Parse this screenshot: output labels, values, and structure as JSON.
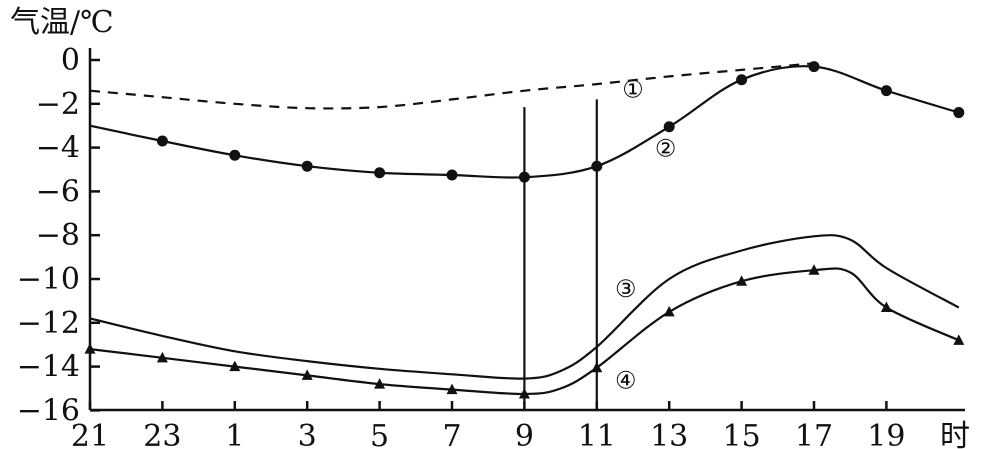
{
  "chart_data": {
    "type": "line",
    "ylabel": "气温/℃",
    "xlabel": "时",
    "categories": [
      "21",
      "23",
      "1",
      "3",
      "5",
      "7",
      "9",
      "11",
      "13",
      "15",
      "17",
      "19"
    ],
    "ylim": [
      -16,
      0
    ],
    "yticks": [
      0,
      -2,
      -4,
      -6,
      -8,
      -10,
      -12,
      -14,
      -16
    ],
    "grid": false,
    "reference_lines": [
      "9",
      "11"
    ],
    "series": [
      {
        "name": "①",
        "style": "dashed",
        "marker": "none",
        "points": [
          [
            0,
            -1.4
          ],
          [
            2,
            -1.7
          ],
          [
            4,
            -2.0
          ],
          [
            6,
            -2.2
          ],
          [
            8,
            -2.15
          ],
          [
            10,
            -1.8
          ],
          [
            12,
            -1.4
          ],
          [
            14,
            -1.1
          ],
          [
            16,
            -0.75
          ],
          [
            18,
            -0.45
          ],
          [
            20,
            -0.15
          ]
        ]
      },
      {
        "name": "②",
        "style": "solid",
        "marker": "circle",
        "points": [
          [
            0,
            -3.0
          ],
          [
            2,
            -3.7
          ],
          [
            4,
            -4.35
          ],
          [
            6,
            -4.85
          ],
          [
            8,
            -5.15
          ],
          [
            10,
            -5.25
          ],
          [
            12,
            -5.35
          ],
          [
            14,
            -4.85
          ],
          [
            16,
            -3.05
          ],
          [
            18,
            -0.9
          ],
          [
            20,
            -0.3
          ],
          [
            22,
            -1.4
          ],
          [
            24,
            -2.4
          ]
        ],
        "marker_points": [
          [
            2,
            -3.7
          ],
          [
            4,
            -4.35
          ],
          [
            6,
            -4.85
          ],
          [
            8,
            -5.15
          ],
          [
            10,
            -5.25
          ],
          [
            12,
            -5.35
          ],
          [
            14,
            -4.85
          ],
          [
            16,
            -3.05
          ],
          [
            18,
            -0.9
          ],
          [
            20,
            -0.3
          ],
          [
            22,
            -1.4
          ],
          [
            24,
            -2.4
          ]
        ]
      },
      {
        "name": "③",
        "style": "solid",
        "marker": "none",
        "points": [
          [
            0,
            -11.8
          ],
          [
            2,
            -12.6
          ],
          [
            4,
            -13.3
          ],
          [
            6,
            -13.75
          ],
          [
            8,
            -14.1
          ],
          [
            10,
            -14.35
          ],
          [
            12,
            -14.55
          ],
          [
            13,
            -14.2
          ],
          [
            14,
            -13.1
          ],
          [
            16,
            -10.0
          ],
          [
            18,
            -8.7
          ],
          [
            20,
            -8.05
          ],
          [
            21,
            -8.2
          ],
          [
            22,
            -9.5
          ],
          [
            24,
            -11.3
          ]
        ]
      },
      {
        "name": "④",
        "style": "solid",
        "marker": "triangle",
        "points": [
          [
            0,
            -13.2
          ],
          [
            2,
            -13.6
          ],
          [
            4,
            -14.0
          ],
          [
            6,
            -14.4
          ],
          [
            8,
            -14.8
          ],
          [
            10,
            -15.05
          ],
          [
            12,
            -15.25
          ],
          [
            13,
            -15.0
          ],
          [
            14,
            -14.05
          ],
          [
            16,
            -11.5
          ],
          [
            18,
            -10.1
          ],
          [
            20,
            -9.6
          ],
          [
            21,
            -9.7
          ],
          [
            22,
            -11.3
          ],
          [
            24,
            -12.8
          ]
        ],
        "marker_points": [
          [
            0,
            -13.2
          ],
          [
            2,
            -13.6
          ],
          [
            4,
            -14.0
          ],
          [
            6,
            -14.4
          ],
          [
            8,
            -14.8
          ],
          [
            10,
            -15.05
          ],
          [
            12,
            -15.25
          ],
          [
            14,
            -14.05
          ],
          [
            16,
            -11.5
          ],
          [
            18,
            -10.1
          ],
          [
            20,
            -9.6
          ],
          [
            22,
            -11.3
          ],
          [
            24,
            -12.8
          ]
        ]
      }
    ],
    "annotations": [
      {
        "text": "①",
        "x": 15,
        "y": -1.3
      },
      {
        "text": "②",
        "x": 15.9,
        "y": -4.0
      },
      {
        "text": "③",
        "x": 14.8,
        "y": -10.4
      },
      {
        "text": "④",
        "x": 14.8,
        "y": -14.6
      }
    ]
  }
}
